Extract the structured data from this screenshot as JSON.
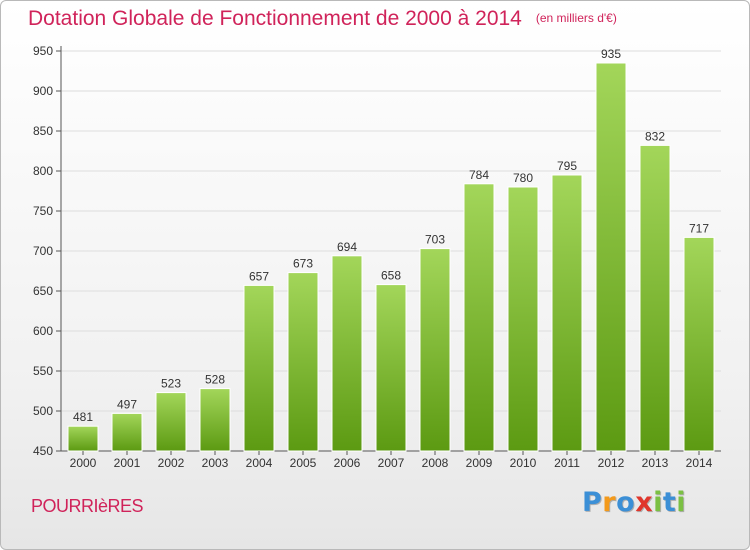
{
  "title": "Dotation Globale de Fonctionnement de 2000 à 2014",
  "title_unit": "(en milliers d'€)",
  "town": "POURRIèRES",
  "logo": {
    "letters": [
      "P",
      "r",
      "o",
      "x",
      "i",
      "t",
      "i"
    ],
    "colors": [
      "#3b8fd6",
      "#f39a1c",
      "#3b8fd6",
      "#e0362c",
      "#7bc043",
      "#3b8fd6",
      "#7bc043"
    ]
  },
  "colors": {
    "bar_top": "#a3d65a",
    "bar_bottom": "#5c9a12",
    "title": "#d0235a"
  },
  "chart_data": {
    "type": "bar",
    "title": "Dotation Globale de Fonctionnement de 2000 à 2014",
    "subtitle": "(en milliers d'€)",
    "xlabel": "",
    "ylabel": "",
    "ylim": [
      450,
      950
    ],
    "yticks": [
      450,
      500,
      550,
      600,
      650,
      700,
      750,
      800,
      850,
      900,
      950
    ],
    "grid": true,
    "categories": [
      "2000",
      "2001",
      "2002",
      "2003",
      "2004",
      "2005",
      "2006",
      "2007",
      "2008",
      "2009",
      "2010",
      "2011",
      "2012",
      "2013",
      "2014"
    ],
    "values": [
      481,
      497,
      523,
      528,
      657,
      673,
      694,
      658,
      703,
      784,
      780,
      795,
      935,
      832,
      717
    ],
    "data_labels": [
      "481",
      "497",
      "523",
      "528",
      "657",
      "673",
      "694",
      "658",
      "703",
      "784",
      "780",
      "795",
      "935",
      "832",
      "717"
    ]
  }
}
